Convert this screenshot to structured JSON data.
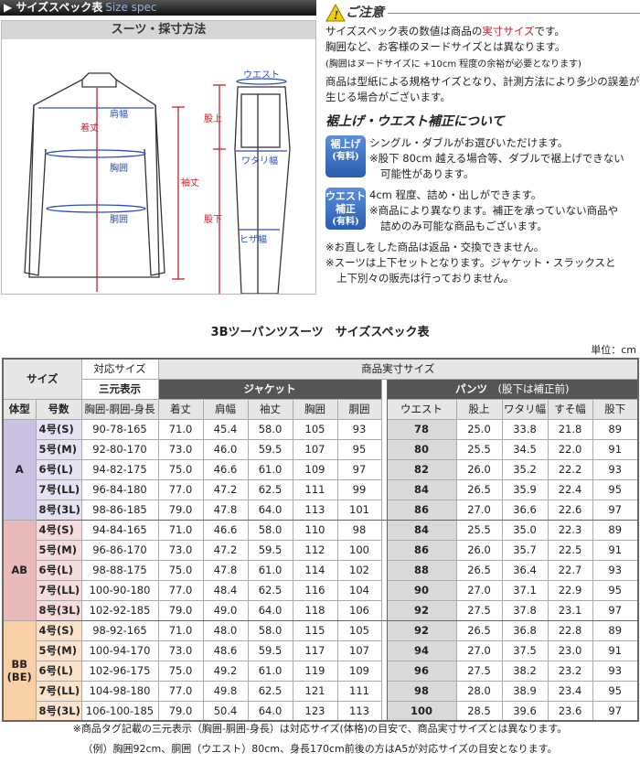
{
  "header": {
    "title": "サイズスペック表",
    "title_en": "Size spec"
  },
  "diagram": {
    "title": "スーツ・採寸方法",
    "labels": {
      "shoulder": "肩幅",
      "length": "着丈",
      "chest": "胸囲",
      "waist_j": "胴囲",
      "sleeve": "袖丈",
      "waist_p": "ウエスト",
      "rise": "股上",
      "thigh": "ワタリ幅",
      "inseam": "股下",
      "knee": "ヒザ幅"
    }
  },
  "notes": {
    "caution_title": "ご注意",
    "line1_pre": "サイズスペック表の数値は商品の",
    "line1_red": "実寸サイズ",
    "line1_post": "です。",
    "line2": "胸囲など、お客様のヌードサイズとは異なります。",
    "line3": "(胸囲はヌードサイズに +10cm 程度の余裕が必要となります)",
    "line4": "商品は型紙による規格サイズとなり、計測方法により多少の誤差が生じる場合がございます。",
    "alter_title": "裾上げ・ウエスト補正について",
    "hem_badge": "裾上げ",
    "hem_badge_sub": "(有料)",
    "hem_1": "シングル・ダブルがお選びいただけます。",
    "hem_2": "※股下 80cm 越える場合等、ダブルで裾上げできない",
    "hem_3": "可能性があります。",
    "waist_badge": "ウエスト補正",
    "waist_badge_sub": "(有料)",
    "waist_1": "4cm 程度、詰め・出しができます。",
    "waist_2": "※商品により異なります。補正を承っていない商品や",
    "waist_3": "詰めのみ可能な商品もございます。",
    "n1": "※お直しをした商品は返品・交換できません。",
    "n2": "※スーツは上下セットとなります。ジャケット・スラックスと",
    "n3": "上下別々の販売は行っておりません。"
  },
  "table": {
    "title": "3Bツーパンツスーツ　サイズスペック表",
    "unit": "単位：cm",
    "h_size": "サイズ",
    "h_corr": "対応サイズ",
    "h_actual": "商品実寸サイズ",
    "h_3d": "三元表示",
    "h_jacket": "ジャケット",
    "h_pants": "パンツ",
    "h_pants_note": "(股下は補正前)",
    "cols": [
      "体型",
      "号数",
      "胸囲-胴囲-身長",
      "着丈",
      "肩幅",
      "袖丈",
      "胸囲",
      "胴囲",
      "ウエスト",
      "股上",
      "ワタリ幅",
      "すそ幅",
      "股下"
    ],
    "colors": {
      "A": [
        "#cbc1e2",
        "#e7e2f3"
      ],
      "AB": [
        "#e8baba",
        "#f6dcdc"
      ],
      "BB": [
        "#f9cfa6",
        "#fce4cc"
      ]
    },
    "groups": [
      {
        "type": "A",
        "rows": [
          [
            "4号(S)",
            "90-78-165",
            "71.0",
            "45.4",
            "58.0",
            "105",
            "93",
            "78",
            "25.0",
            "33.8",
            "21.8",
            "89"
          ],
          [
            "5号(M)",
            "92-80-170",
            "73.0",
            "46.0",
            "59.5",
            "107",
            "95",
            "80",
            "25.5",
            "34.5",
            "22.0",
            "91"
          ],
          [
            "6号(L)",
            "94-82-175",
            "75.0",
            "46.6",
            "61.0",
            "109",
            "97",
            "82",
            "26.0",
            "35.2",
            "22.2",
            "93"
          ],
          [
            "7号(LL)",
            "96-84-180",
            "77.0",
            "47.2",
            "62.5",
            "111",
            "99",
            "84",
            "26.5",
            "35.9",
            "22.4",
            "95"
          ],
          [
            "8号(3L)",
            "98-86-185",
            "79.0",
            "47.8",
            "64.0",
            "113",
            "101",
            "86",
            "27.0",
            "36.6",
            "22.6",
            "97"
          ]
        ]
      },
      {
        "type": "AB",
        "rows": [
          [
            "4号(S)",
            "94-84-165",
            "71.0",
            "46.6",
            "58.0",
            "110",
            "98",
            "84",
            "25.5",
            "35.0",
            "22.3",
            "89"
          ],
          [
            "5号(M)",
            "96-86-170",
            "73.0",
            "47.2",
            "59.5",
            "112",
            "100",
            "86",
            "26.0",
            "35.7",
            "22.5",
            "91"
          ],
          [
            "6号(L)",
            "98-88-175",
            "75.0",
            "47.8",
            "61.0",
            "114",
            "102",
            "88",
            "26.5",
            "36.4",
            "22.7",
            "93"
          ],
          [
            "7号(LL)",
            "100-90-180",
            "77.0",
            "48.4",
            "62.5",
            "116",
            "104",
            "90",
            "27.0",
            "37.1",
            "22.9",
            "95"
          ],
          [
            "8号(3L)",
            "102-92-185",
            "79.0",
            "49.0",
            "64.0",
            "118",
            "106",
            "92",
            "27.5",
            "37.8",
            "23.1",
            "97"
          ]
        ]
      },
      {
        "type": "BB",
        "type2": "(BE)",
        "rows": [
          [
            "4号(S)",
            "98-92-165",
            "71.0",
            "48.0",
            "58.0",
            "115",
            "105",
            "92",
            "26.5",
            "36.8",
            "22.8",
            "89"
          ],
          [
            "5号(M)",
            "100-94-170",
            "73.0",
            "48.6",
            "59.5",
            "117",
            "107",
            "94",
            "27.0",
            "37.5",
            "23.0",
            "91"
          ],
          [
            "6号(L)",
            "102-96-175",
            "75.0",
            "49.2",
            "61.0",
            "119",
            "109",
            "96",
            "27.5",
            "38.2",
            "23.2",
            "93"
          ],
          [
            "7号(LL)",
            "104-98-180",
            "77.0",
            "49.8",
            "62.5",
            "121",
            "111",
            "98",
            "28.0",
            "38.9",
            "23.4",
            "95"
          ],
          [
            "8号(3L)",
            "106-100-185",
            "79.0",
            "50.4",
            "64.0",
            "123",
            "113",
            "100",
            "28.5",
            "39.6",
            "23.6",
            "97"
          ]
        ]
      }
    ],
    "foot1": "※商品タグ記載の三元表示（胸囲-胴囲-身長）は対応サイズ(体格)の目安で、商品実寸サイズとは異なります。",
    "foot2": "（例）胸囲92cm、胴囲（ウエスト）80cm、身長170cm前後の方はA5が対応サイズの目安となります。"
  }
}
